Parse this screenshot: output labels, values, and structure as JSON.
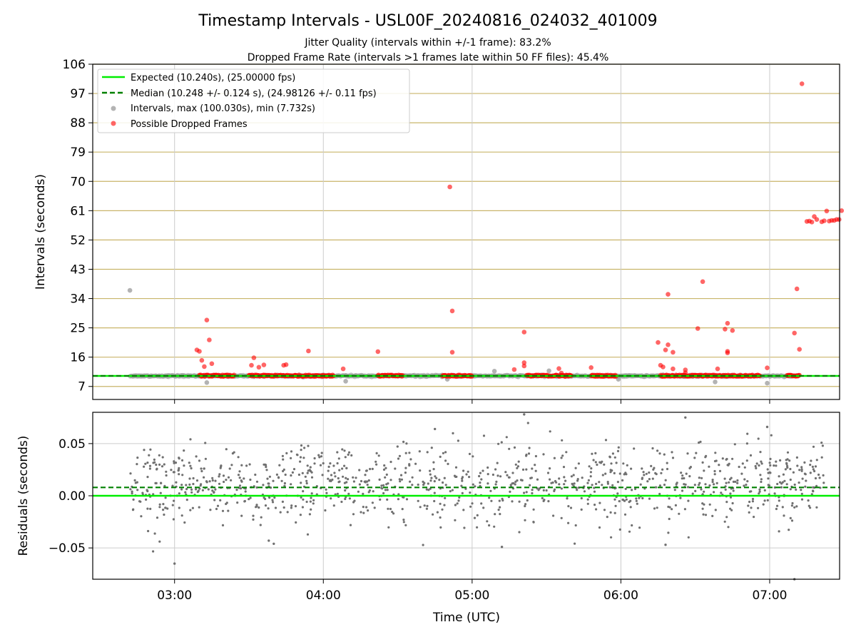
{
  "chart_data": [
    {
      "type": "scatter",
      "title": "Timestamp Intervals - USL00F_20240816_024032_401009",
      "subtitle_1": "Jitter Quality (intervals within +/-1 frame): 83.2%",
      "subtitle_2": "Dropped Frame Rate (intervals >1 frames late within 50 FF files): 45.4%",
      "ylabel": "Intervals (seconds)",
      "xlabel": "",
      "x_axis": {
        "type": "time",
        "range_hours_utc": [
          2.45,
          7.47
        ],
        "tick_labels": [
          "03:00",
          "04:00",
          "05:00",
          "06:00",
          "07:00"
        ],
        "tick_hours": [
          3,
          4,
          5,
          6,
          7
        ]
      },
      "y_axis": {
        "range": [
          3,
          106
        ],
        "ticks": [
          7,
          16,
          25,
          34,
          43,
          52,
          61,
          70,
          79,
          88,
          97,
          106
        ]
      },
      "grid": "on",
      "legend_position": "top-left",
      "legend": [
        "Expected (10.240s), (25.00000 fps)",
        "Median (10.248 +/- 0.124 s), (24.98126 +/- 0.11 fps)",
        "Intervals, max (100.030s), min (7.732s)",
        "Possible Dropped Frames"
      ],
      "expected_interval": 10.24,
      "median_interval": 10.248,
      "intervals_baseline": {
        "x_start": "02:42",
        "x_end": "07:12",
        "typical": 10.24
      },
      "interval_outliers": [
        {
          "x": "02:42",
          "y": 36.5
        },
        {
          "x": "03:13",
          "y": 8.2
        },
        {
          "x": "04:09",
          "y": 8.6
        },
        {
          "x": "05:59",
          "y": 9.2
        },
        {
          "x": "06:38",
          "y": 8.4
        },
        {
          "x": "06:59",
          "y": 8.0
        },
        {
          "x": "05:09",
          "y": 11.7
        },
        {
          "x": "05:31",
          "y": 11.8
        },
        {
          "x": "04:50",
          "y": 9.2
        }
      ],
      "dropped_frames": [
        {
          "x": "03:09",
          "y": 18.2
        },
        {
          "x": "03:10",
          "y": 17.8
        },
        {
          "x": "03:11",
          "y": 15.0
        },
        {
          "x": "03:12",
          "y": 13.1
        },
        {
          "x": "03:13",
          "y": 27.4
        },
        {
          "x": "03:14",
          "y": 21.3
        },
        {
          "x": "03:15",
          "y": 14.0
        },
        {
          "x": "03:31",
          "y": 13.5
        },
        {
          "x": "03:32",
          "y": 15.8
        },
        {
          "x": "03:34",
          "y": 12.9
        },
        {
          "x": "03:36",
          "y": 13.6
        },
        {
          "x": "03:44",
          "y": 13.5
        },
        {
          "x": "03:45",
          "y": 13.7
        },
        {
          "x": "03:54",
          "y": 17.9
        },
        {
          "x": "04:08",
          "y": 12.4
        },
        {
          "x": "04:22",
          "y": 17.7
        },
        {
          "x": "04:51",
          "y": 68.3
        },
        {
          "x": "04:52",
          "y": 30.2
        },
        {
          "x": "04:52",
          "y": 17.5
        },
        {
          "x": "05:17",
          "y": 12.2
        },
        {
          "x": "05:21",
          "y": 23.7
        },
        {
          "x": "05:21",
          "y": 14.3
        },
        {
          "x": "05:21",
          "y": 13.3
        },
        {
          "x": "05:35",
          "y": 12.5
        },
        {
          "x": "05:36",
          "y": 11.1
        },
        {
          "x": "05:48",
          "y": 12.8
        },
        {
          "x": "06:15",
          "y": 20.5
        },
        {
          "x": "06:16",
          "y": 13.5
        },
        {
          "x": "06:17",
          "y": 13.0
        },
        {
          "x": "06:18",
          "y": 18.2
        },
        {
          "x": "06:19",
          "y": 35.3
        },
        {
          "x": "06:19",
          "y": 19.8
        },
        {
          "x": "06:21",
          "y": 17.5
        },
        {
          "x": "06:21",
          "y": 12.4
        },
        {
          "x": "06:26",
          "y": 11.2
        },
        {
          "x": "06:26",
          "y": 12.1
        },
        {
          "x": "06:31",
          "y": 24.8
        },
        {
          "x": "06:33",
          "y": 39.2
        },
        {
          "x": "06:39",
          "y": 12.4
        },
        {
          "x": "06:42",
          "y": 24.6
        },
        {
          "x": "06:43",
          "y": 17.3
        },
        {
          "x": "06:43",
          "y": 17.8
        },
        {
          "x": "06:43",
          "y": 26.4
        },
        {
          "x": "06:45",
          "y": 24.2
        },
        {
          "x": "06:59",
          "y": 12.7
        },
        {
          "x": "07:10",
          "y": 23.4
        },
        {
          "x": "07:11",
          "y": 37.0
        },
        {
          "x": "07:12",
          "y": 18.4
        },
        {
          "x": "07:13",
          "y": 100.0
        },
        {
          "x": "07:15",
          "y": 57.7
        },
        {
          "x": "07:16",
          "y": 57.8
        },
        {
          "x": "07:17",
          "y": 57.5
        },
        {
          "x": "07:18",
          "y": 59.2
        },
        {
          "x": "07:19",
          "y": 58.3
        },
        {
          "x": "07:21",
          "y": 57.6
        },
        {
          "x": "07:22",
          "y": 57.9
        },
        {
          "x": "07:23",
          "y": 60.9
        },
        {
          "x": "07:24",
          "y": 57.8
        },
        {
          "x": "07:25",
          "y": 58.0
        },
        {
          "x": "07:26",
          "y": 58.0
        },
        {
          "x": "07:27",
          "y": 58.3
        },
        {
          "x": "07:28",
          "y": 58.3
        },
        {
          "x": "07:29",
          "y": 61.0
        }
      ],
      "dropped_frame_dense_segments": [
        {
          "x_start": "03:10",
          "x_end": "03:24",
          "y": 10.3
        },
        {
          "x_start": "03:30",
          "x_end": "04:04",
          "y": 10.3
        },
        {
          "x_start": "04:22",
          "x_end": "04:32",
          "y": 10.3
        },
        {
          "x_start": "04:48",
          "x_end": "05:00",
          "y": 10.3
        },
        {
          "x_start": "05:22",
          "x_end": "05:40",
          "y": 10.3
        },
        {
          "x_start": "05:48",
          "x_end": "05:58",
          "y": 10.3
        },
        {
          "x_start": "06:16",
          "x_end": "06:28",
          "y": 10.3
        },
        {
          "x_start": "06:28",
          "x_end": "06:56",
          "y": 10.3
        },
        {
          "x_start": "07:07",
          "x_end": "07:12",
          "y": 10.3
        }
      ],
      "colors": {
        "expected": "#00ee00",
        "median": "#008000",
        "intervals": "#999999",
        "dropped": "#ff0000",
        "hgrid": "#c9b56a",
        "vgrid": "#cccccc"
      }
    },
    {
      "type": "scatter",
      "ylabel": "Residuals (seconds)",
      "xlabel": "Time (UTC)",
      "x_axis": {
        "type": "time",
        "range_hours_utc": [
          2.45,
          7.47
        ],
        "tick_labels": [
          "03:00",
          "04:00",
          "05:00",
          "06:00",
          "07:00"
        ],
        "tick_hours": [
          3,
          4,
          5,
          6,
          7
        ]
      },
      "y_axis": {
        "range": [
          -0.08,
          0.08
        ],
        "ticks": [
          -0.05,
          0.0,
          0.05
        ],
        "tick_labels": [
          "−0.05",
          "0.00",
          "0.05"
        ]
      },
      "grid": "on",
      "expected_line": 0.0,
      "median_line": 0.008,
      "residual_cloud": {
        "x_start": "02:42",
        "x_end": "07:22",
        "typical_spread": [
          -0.03,
          0.05
        ],
        "point_count": 1100
      },
      "residual_outliers": [
        {
          "x": "03:00",
          "y": -0.065
        },
        {
          "x": "03:40",
          "y": -0.046
        },
        {
          "x": "03:38",
          "y": -0.043
        },
        {
          "x": "05:12",
          "y": -0.049
        },
        {
          "x": "06:18",
          "y": -0.047
        },
        {
          "x": "05:21",
          "y": 0.078
        },
        {
          "x": "06:26",
          "y": 0.075
        },
        {
          "x": "07:10",
          "y": -0.08
        },
        {
          "x": "04:45",
          "y": 0.064
        },
        {
          "x": "06:59",
          "y": 0.066
        }
      ],
      "colors": {
        "expected": "#00ee00",
        "median": "#008000",
        "residuals": "#707070",
        "grid": "#cccccc"
      }
    }
  ]
}
